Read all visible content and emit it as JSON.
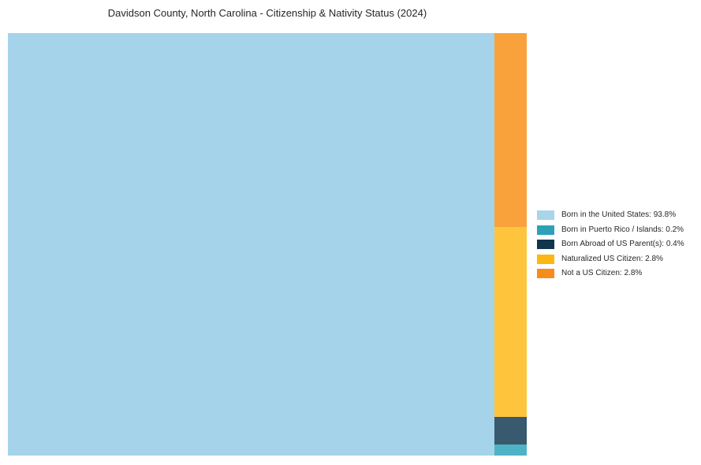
{
  "title": "Davidson County, North Carolina - Citizenship & Nativity Status (2024)",
  "colors": {
    "background": "#ffffff",
    "text": "#262626"
  },
  "chart_data": {
    "type": "treemap",
    "title": "Davidson County, North Carolina - Citizenship & Nativity Status (2024)",
    "legend_position": "center right",
    "layout": "single large slice fills left side; remaining slices stacked in a narrow right column, top to bottom",
    "slices": [
      {
        "label": "Born in the United States",
        "value_pct": 93.8,
        "color": "#A5D3EA",
        "position": "main-left"
      },
      {
        "label": "Not a US Citizen",
        "value_pct": 2.8,
        "color": "#F9A23C",
        "position": "right-column-1-top"
      },
      {
        "label": "Naturalized US Citizen",
        "value_pct": 2.8,
        "color": "#FEC53C",
        "position": "right-column-2"
      },
      {
        "label": "Born Abroad of US Parent(s)",
        "value_pct": 0.4,
        "color": "#38596E",
        "position": "right-column-3"
      },
      {
        "label": "Born in Puerto Rico / Islands",
        "value_pct": 0.2,
        "color": "#4FB3C6",
        "position": "right-column-4-bottom"
      }
    ]
  },
  "legend": {
    "items": [
      {
        "label": "Born in the United States: 93.8%",
        "swatch_color": "#A9D5EA"
      },
      {
        "label": "Born in Puerto Rico / Islands: 0.2%",
        "swatch_color": "#2CA1B8"
      },
      {
        "label": "Born Abroad of US Parent(s): 0.4%",
        "swatch_color": "#10354C"
      },
      {
        "label": "Naturalized US Citizen: 2.8%",
        "swatch_color": "#FDB714"
      },
      {
        "label": "Not a US Citizen: 2.8%",
        "swatch_color": "#F78C1E"
      }
    ]
  }
}
